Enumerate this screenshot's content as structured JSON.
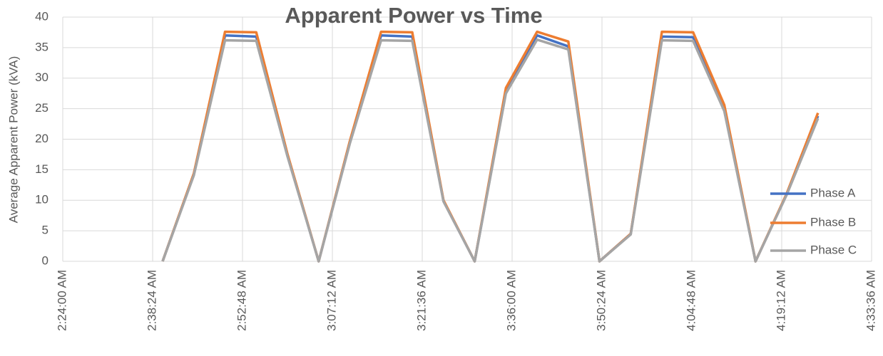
{
  "chart_data": {
    "type": "line",
    "title": "Apparent Power vs Time",
    "y_label": "Average Apparent Power (kVA)",
    "x": [
      "2:40:00 AM",
      "2:45:00 AM",
      "2:50:00 AM",
      "2:55:00 AM",
      "3:00:00 AM",
      "3:05:00 AM",
      "3:10:00 AM",
      "3:15:00 AM",
      "3:20:00 AM",
      "3:25:00 AM",
      "3:30:00 AM",
      "3:35:00 AM",
      "3:40:00 AM",
      "3:45:00 AM",
      "3:50:00 AM",
      "3:55:00 AM",
      "4:00:00 AM",
      "4:05:00 AM",
      "4:10:00 AM",
      "4:15:00 AM",
      "4:20:00 AM",
      "4:25:00 AM"
    ],
    "series": [
      {
        "name": "Phase A",
        "color": "#4472c4",
        "values": [
          0,
          14.3,
          37,
          36.8,
          17.4,
          0,
          19.5,
          37,
          36.8,
          9.9,
          0,
          27.8,
          37,
          35.2,
          0,
          4.5,
          36.8,
          36.7,
          25,
          0,
          11,
          23.8
        ]
      },
      {
        "name": "Phase B",
        "color": "#ed7d31",
        "values": [
          0,
          14.4,
          37.6,
          37.5,
          17.6,
          0,
          19.7,
          37.6,
          37.5,
          10,
          0,
          28.4,
          37.6,
          36,
          0,
          4.5,
          37.6,
          37.5,
          25.6,
          0,
          11.1,
          24.3
        ]
      },
      {
        "name": "Phase C",
        "color": "#a5a5a5",
        "values": [
          0,
          14.1,
          36.2,
          36.1,
          17.2,
          0,
          19.3,
          36.2,
          36.1,
          9.8,
          0,
          27.5,
          36.3,
          34.7,
          0,
          4.4,
          36.2,
          36.1,
          24.6,
          0,
          10.9,
          23.4
        ]
      }
    ],
    "xlim": [
      "2:24:00 AM",
      "4:33:36 AM"
    ],
    "xticks": [
      "2:24:00 AM",
      "2:38:24 AM",
      "2:52:48 AM",
      "3:07:12 AM",
      "3:21:36 AM",
      "3:36:00 AM",
      "3:50:24 AM",
      "4:04:48 AM",
      "4:19:12 AM",
      "4:33:36 AM"
    ],
    "ylim": [
      0,
      40
    ],
    "yticks": [
      0,
      5,
      10,
      15,
      20,
      25,
      30,
      35,
      40
    ],
    "grid": true,
    "legend": "lower right"
  }
}
